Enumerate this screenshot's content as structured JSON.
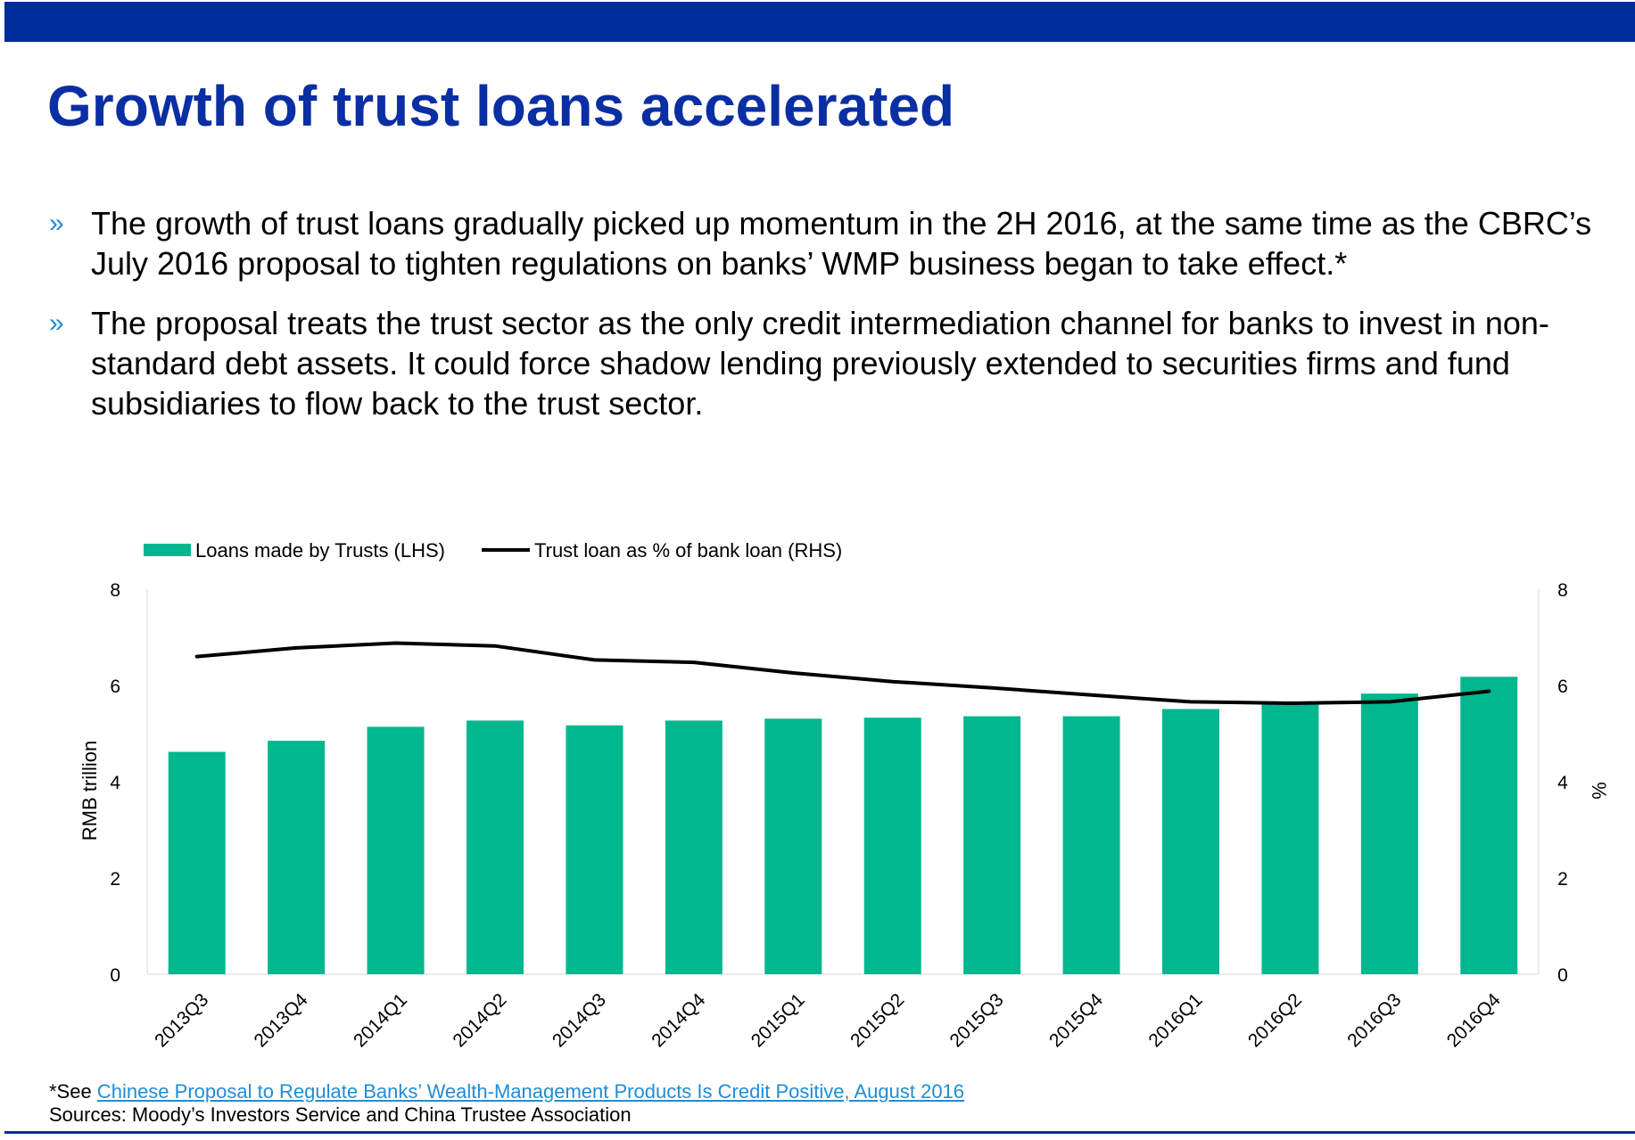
{
  "title": "Growth of trust loans accelerated",
  "bullets": [
    {
      "mark": "»",
      "text": "The growth of trust loans gradually picked up momentum in the 2H 2016, at the same time as the CBRC’s July 2016 proposal to tighten regulations on banks’ WMP business began to take effect.*"
    },
    {
      "mark": "»",
      "text": "The proposal treats the trust sector as the only credit intermediation channel for banks to invest in non-standard debt assets. It could force shadow lending previously extended to securities firms and fund subsidiaries to flow back to the trust sector."
    }
  ],
  "footnote": {
    "prefix": "*See ",
    "link_text": "Chinese Proposal to Regulate Banks’ Wealth-Management Products Is Credit Positive, August 2016"
  },
  "sources": "Sources: Moody’s Investors Service and China Trustee Association",
  "colors": {
    "brand_blue": "#0A2EA3",
    "bar_green": "#00B78F",
    "line_black": "#000000",
    "link_blue": "#1F8DD6"
  },
  "chart_data": {
    "type": "bar",
    "categories": [
      "2013Q3",
      "2013Q4",
      "2014Q1",
      "2014Q2",
      "2014Q3",
      "2014Q4",
      "2015Q1",
      "2015Q2",
      "2015Q3",
      "2015Q4",
      "2016Q1",
      "2016Q2",
      "2016Q3",
      "2016Q4"
    ],
    "series": [
      {
        "name": "Loans made by Trusts (LHS)",
        "type": "bar",
        "axis": "left",
        "values": [
          4.62,
          4.85,
          5.14,
          5.27,
          5.17,
          5.27,
          5.31,
          5.33,
          5.36,
          5.36,
          5.51,
          5.65,
          5.83,
          6.18
        ]
      },
      {
        "name": "Trust loan as % of bank loan (RHS)",
        "type": "line",
        "axis": "right",
        "values": [
          6.6,
          6.78,
          6.88,
          6.82,
          6.53,
          6.48,
          6.26,
          6.08,
          5.95,
          5.8,
          5.66,
          5.63,
          5.66,
          5.88
        ]
      }
    ],
    "ylabel": "RMB trillion",
    "y2label": "%",
    "ylim": [
      0,
      8
    ],
    "y2lim": [
      0,
      8
    ],
    "yticks": [
      0,
      2,
      4,
      6,
      8
    ],
    "y2ticks": [
      0,
      2,
      4,
      6,
      8
    ],
    "legend": "top-left",
    "grid": false
  }
}
